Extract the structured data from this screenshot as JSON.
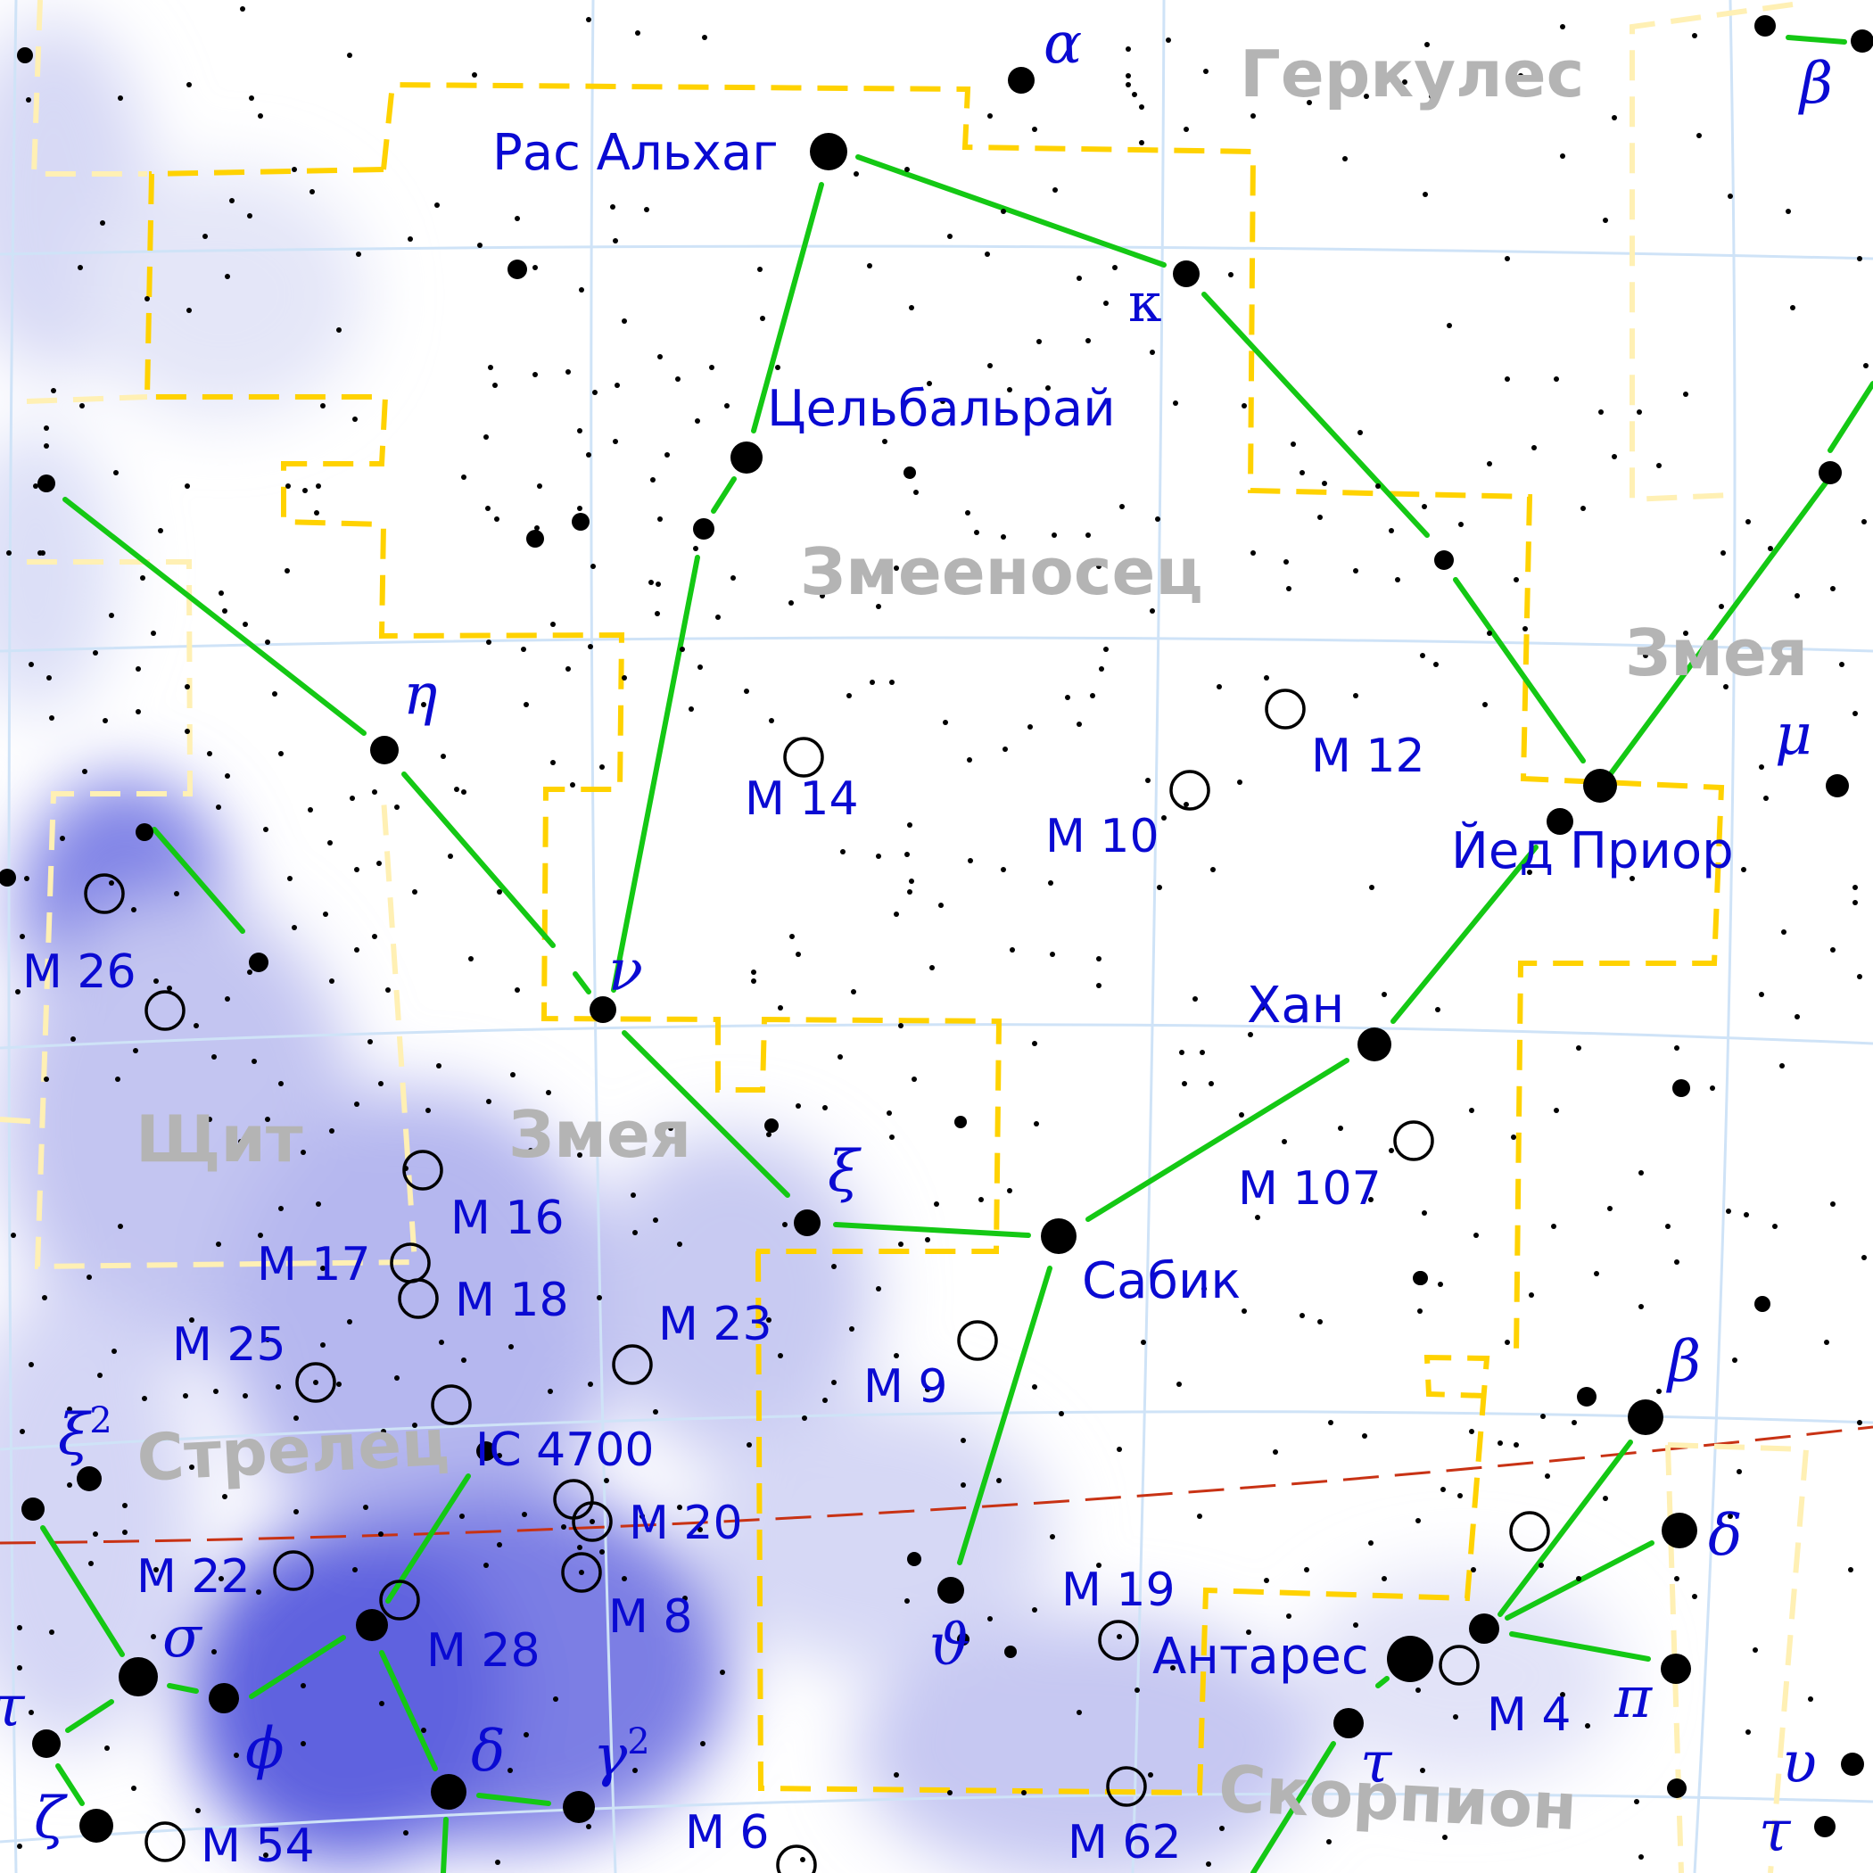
{
  "constellations": {
    "hercules": "Геркулес",
    "ophiuchus": "Змееносец",
    "serpens_caput": "Змея",
    "serpens_cauda": "Змея",
    "scutum": "Щит",
    "sagittarius": "Стрелец",
    "scorpius": "Скорпион"
  },
  "stars": {
    "alpha_her": "α",
    "ras_alhague": "Рас Альхаг",
    "kappa": "κ",
    "cebalrai": "Цельбальрай",
    "eta": "η",
    "nu": "ν",
    "xi": "ξ",
    "sabik": "Сабик",
    "han": "Хан",
    "yed_prior": "Йед Приор",
    "theta": "ϑ",
    "antares": "Антарес",
    "beta_ser": "β",
    "beta_her": "β",
    "mu": "μ",
    "beta_sco": "β",
    "delta_sco": "δ",
    "pi_sco": "π",
    "tau_sco": "τ",
    "upsilon": "υ",
    "tau_sco2": "τ",
    "sigma": "σ",
    "phi": "ϕ",
    "tau_sgr": "τ",
    "zeta": "ζ",
    "delta_sgr": "δ",
    "gamma2": "γ",
    "gamma2_sup": "2",
    "xi2": "ξ",
    "xi2_sup": "2"
  },
  "deep_sky": {
    "m14": "M 14",
    "m10": "M 10",
    "m12": "M 12",
    "m107": "M 107",
    "m9": "M 9",
    "m19": "M 19",
    "m4": "M 4",
    "m62": "M 62",
    "m6": "M 6",
    "m26": "M 26",
    "m16": "M 16",
    "m17": "M 17",
    "m18": "M 18",
    "m25": "M 25",
    "m23": "M 23",
    "ic4700": "IC 4700",
    "m20": "M 20",
    "m22": "M 22",
    "m8": "M 8",
    "m28": "M 28",
    "m54": "M 54"
  },
  "colors": {
    "stick": "#14c814",
    "boundary": "#ffd200",
    "label": "#0a0ad2",
    "constellation_label": "#b4b4b4",
    "ecliptic": "#c83214",
    "milky_way": "#7a7ae6"
  }
}
